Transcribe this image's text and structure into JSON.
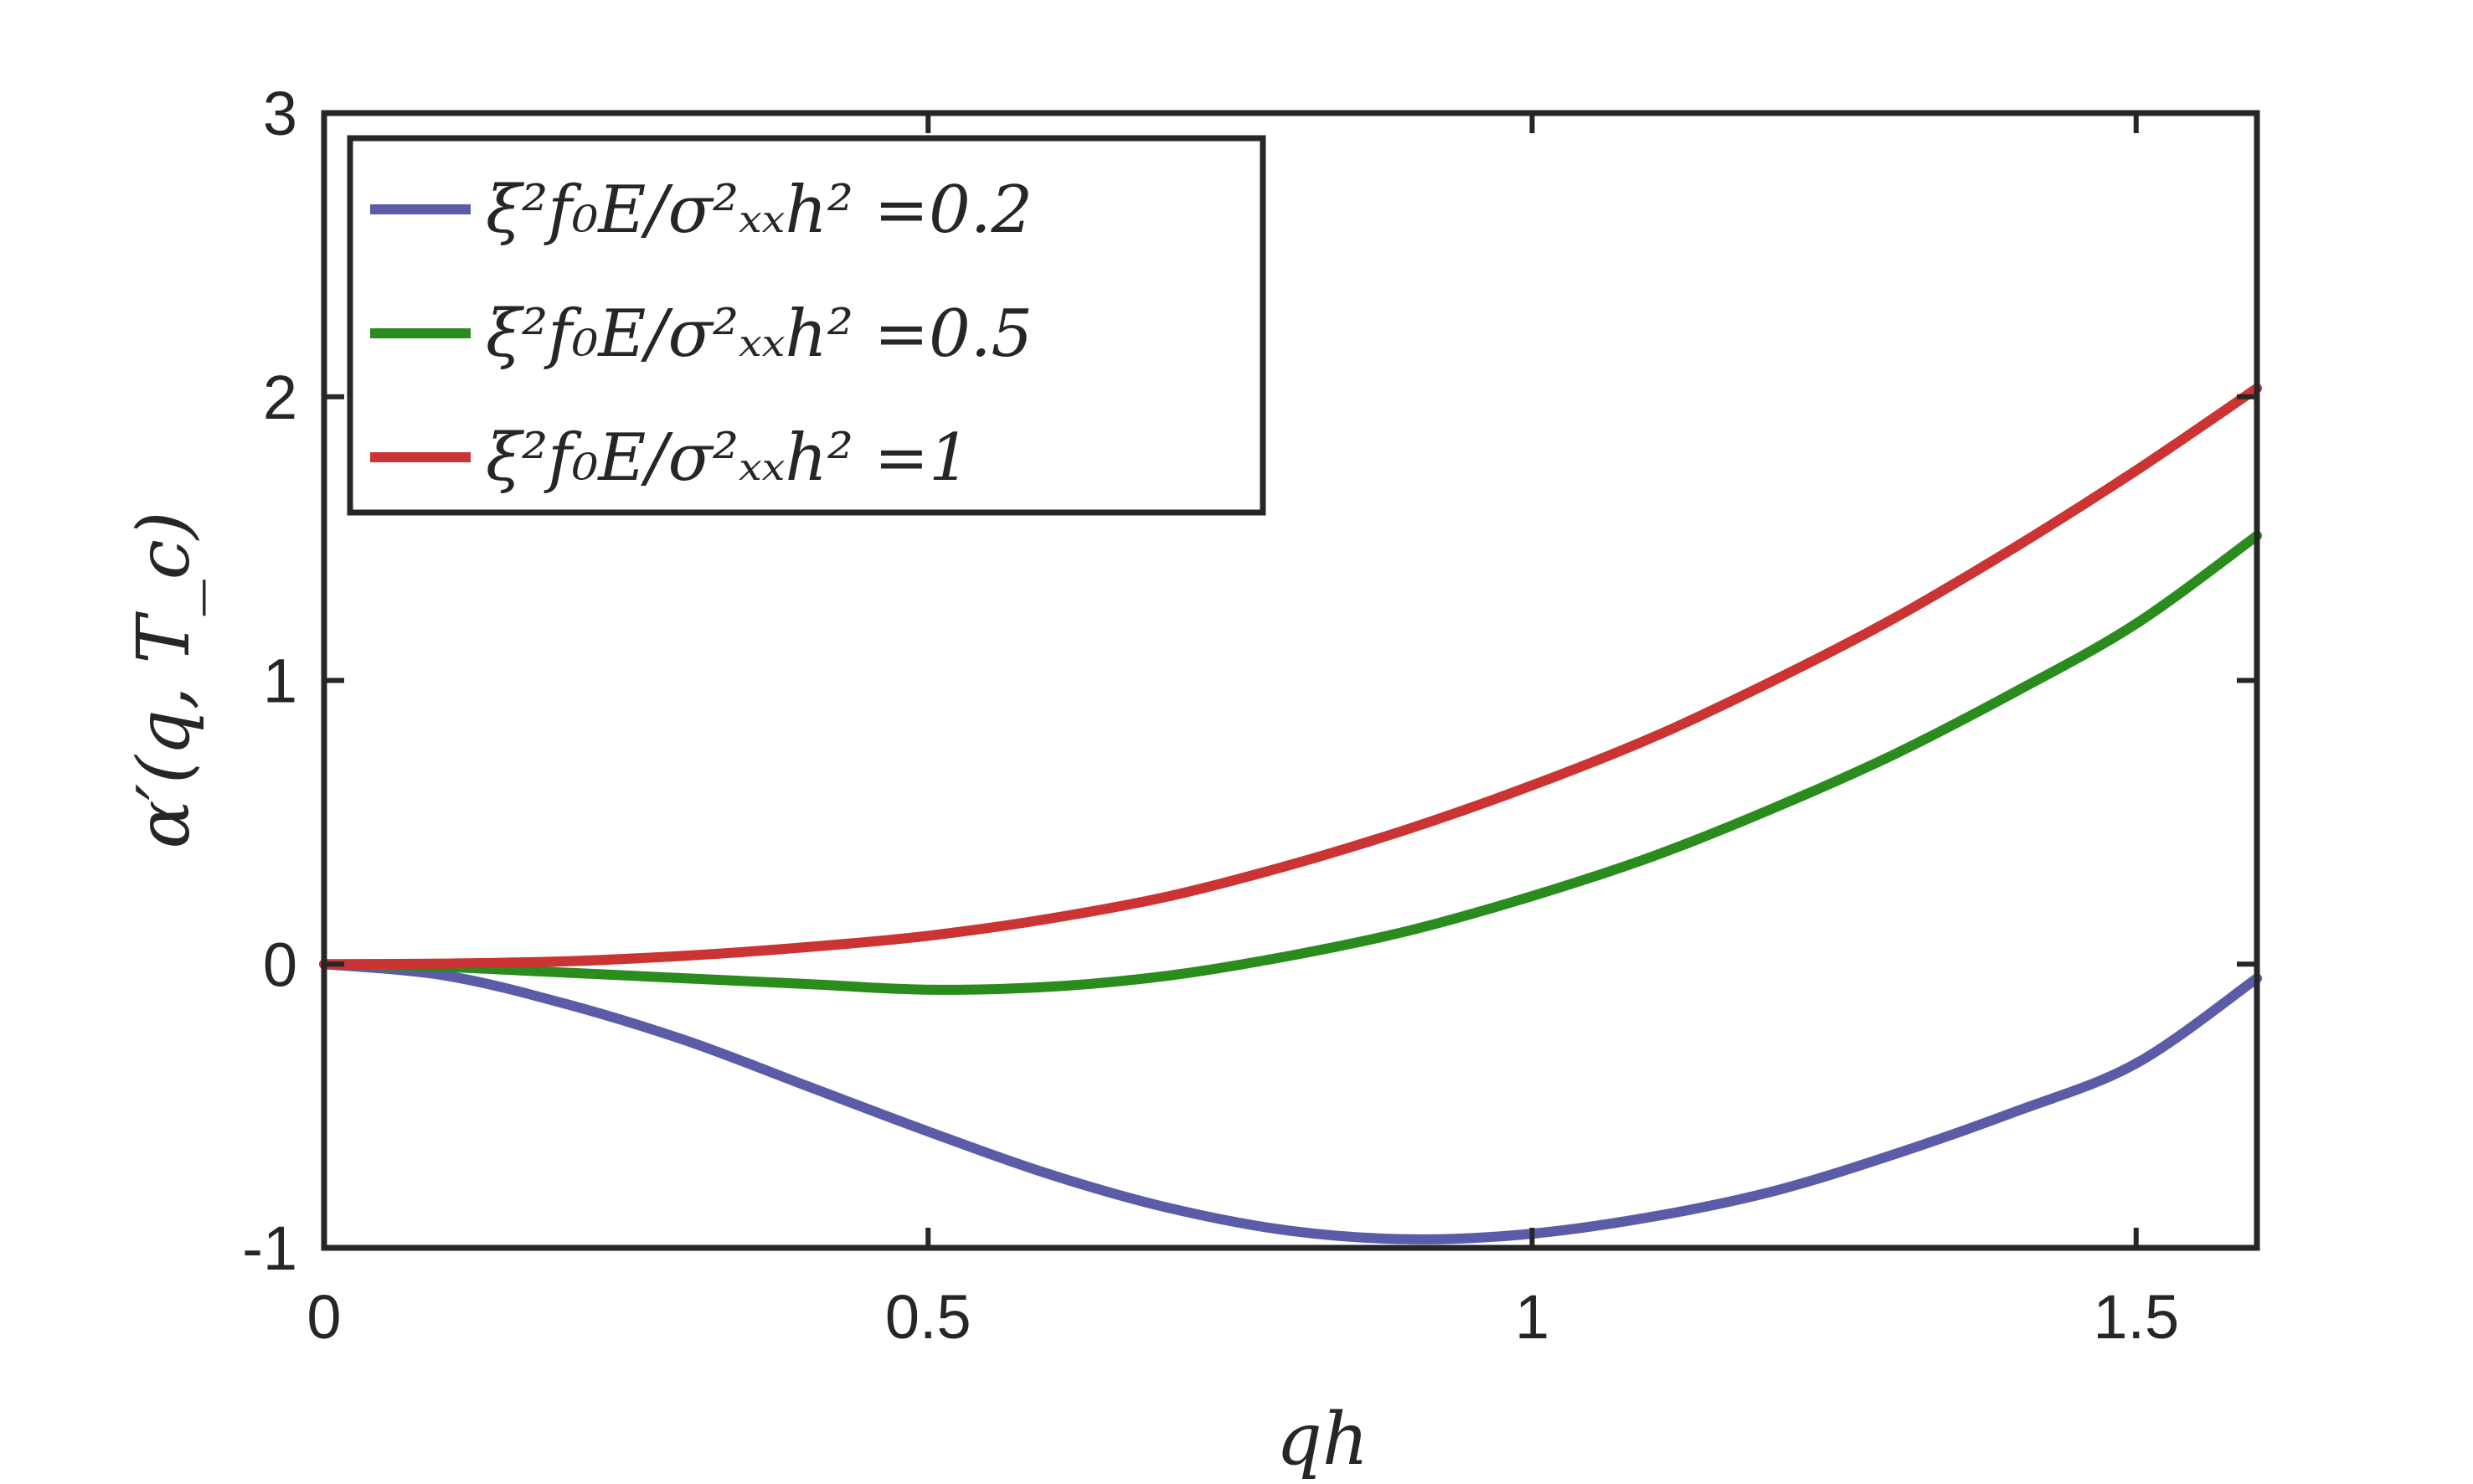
{
  "chart_data": {
    "type": "line",
    "title": "",
    "xlabel": "qh",
    "ylabel": "α′(q, T_c)",
    "xlim": [
      0,
      1.6
    ],
    "ylim": [
      -1,
      3
    ],
    "xticks": [
      0,
      0.5,
      1,
      1.5
    ],
    "xtick_labels": [
      "0",
      "0.5",
      "1",
      "1.5"
    ],
    "yticks": [
      -1,
      0,
      1,
      2,
      3
    ],
    "ytick_labels": [
      "-1",
      "0",
      "1",
      "2",
      "3"
    ],
    "grid": false,
    "legend_position": "top-left",
    "series": [
      {
        "name": "ξ²f₀E/σ²ₓₓh² =0.2",
        "color": "#5b5ba8",
        "x": [
          0,
          0.1,
          0.2,
          0.3,
          0.4,
          0.5,
          0.6,
          0.7,
          0.8,
          0.9,
          1.0,
          1.1,
          1.2,
          1.3,
          1.4,
          1.5,
          1.6
        ],
        "y": [
          0,
          -0.04,
          -0.14,
          -0.27,
          -0.43,
          -0.59,
          -0.74,
          -0.86,
          -0.94,
          -0.97,
          -0.95,
          -0.89,
          -0.8,
          -0.67,
          -0.52,
          -0.35,
          -0.05
        ]
      },
      {
        "name": "ξ²f₀E/σ²ₓₓh² =0.5",
        "color": "#2b8c1e",
        "x": [
          0,
          0.1,
          0.2,
          0.3,
          0.4,
          0.5,
          0.6,
          0.7,
          0.8,
          0.9,
          1.0,
          1.1,
          1.2,
          1.3,
          1.4,
          1.5,
          1.6
        ],
        "y": [
          0,
          -0.01,
          -0.03,
          -0.05,
          -0.07,
          -0.09,
          -0.08,
          -0.04,
          0.03,
          0.12,
          0.24,
          0.38,
          0.55,
          0.74,
          0.96,
          1.2,
          1.51
        ]
      },
      {
        "name": "ξ²f₀E/σ²ₓₓh² =1",
        "color": "#cc3333",
        "x": [
          0,
          0.1,
          0.2,
          0.3,
          0.4,
          0.5,
          0.6,
          0.7,
          0.8,
          0.9,
          1.0,
          1.1,
          1.2,
          1.3,
          1.4,
          1.5,
          1.6
        ],
        "y": [
          0,
          0.002,
          0.01,
          0.03,
          0.06,
          0.1,
          0.16,
          0.24,
          0.35,
          0.48,
          0.63,
          0.8,
          1.0,
          1.22,
          1.47,
          1.74,
          2.03
        ]
      }
    ]
  }
}
